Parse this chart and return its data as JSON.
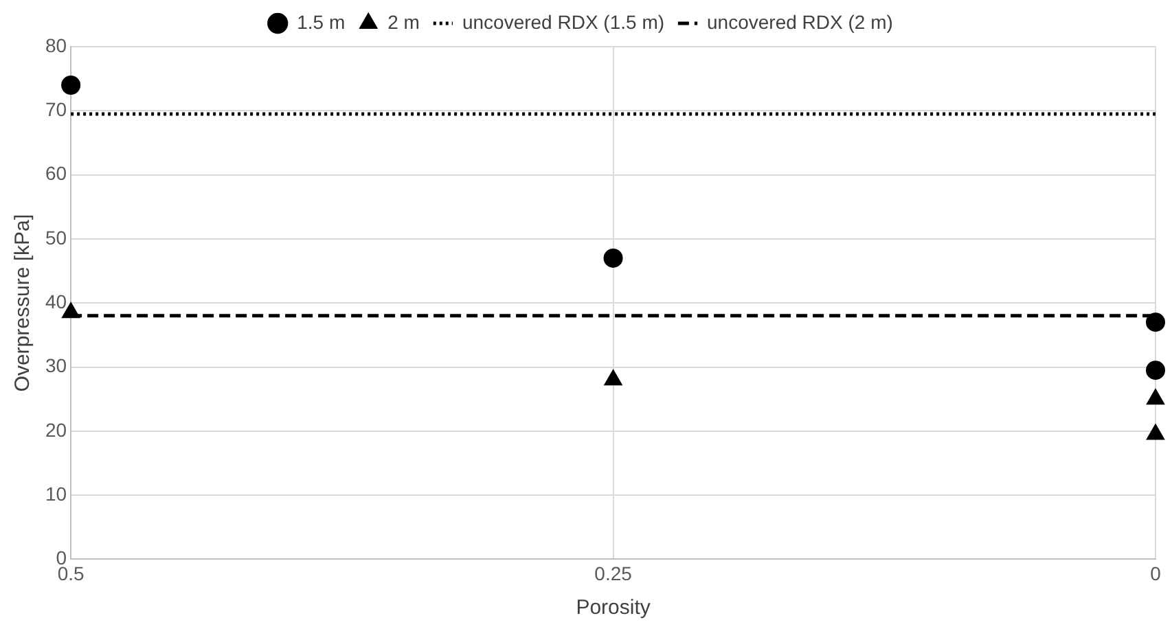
{
  "chart_data": {
    "type": "scatter",
    "xlabel": "Porosity",
    "ylabel": "Overpressure [kPa]",
    "xlim": [
      0.5,
      0
    ],
    "xticks": [
      0.5,
      0.25,
      0
    ],
    "ylim": [
      0,
      80
    ],
    "yticks": [
      0,
      10,
      20,
      30,
      40,
      50,
      60,
      70,
      80
    ],
    "grid": true,
    "legend": "top",
    "series": [
      {
        "name": "1.5 m",
        "type": "scatter",
        "marker": "circle",
        "color": "#000000",
        "x": [
          0.5,
          0.25,
          0,
          0
        ],
        "values": [
          74,
          47,
          37,
          29.5
        ]
      },
      {
        "name": "2 m",
        "type": "scatter",
        "marker": "triangle",
        "color": "#000000",
        "x": [
          0.5,
          0.25,
          0,
          0
        ],
        "values": [
          38.5,
          28,
          25,
          19.5
        ]
      },
      {
        "name": "uncovered RDX (1.5 m)",
        "type": "line",
        "marker": "none",
        "line_style": "dotted",
        "color": "#000000",
        "x": [
          0.5,
          0
        ],
        "values": [
          69.5,
          69.5
        ]
      },
      {
        "name": "uncovered RDX (2 m)",
        "type": "line",
        "marker": "none",
        "line_style": "dashed",
        "color": "#000000",
        "x": [
          0.5,
          0
        ],
        "values": [
          38,
          38
        ]
      }
    ]
  }
}
